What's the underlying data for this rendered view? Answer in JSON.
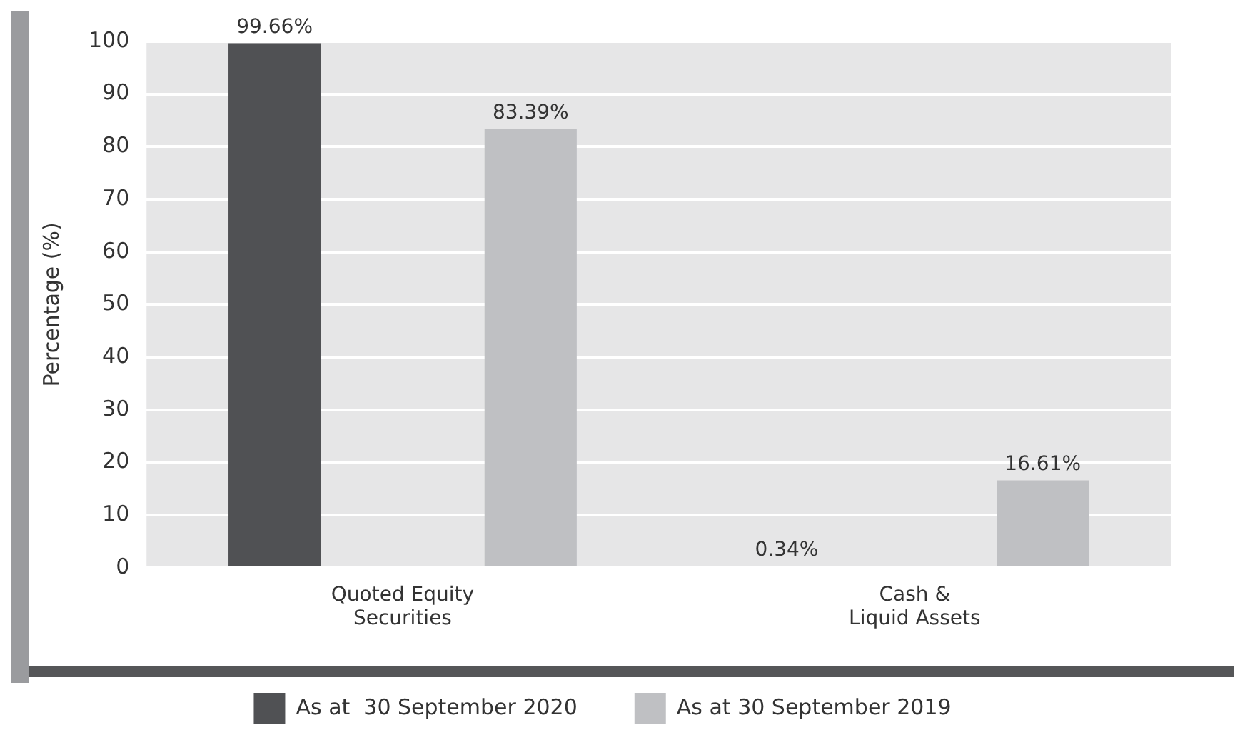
{
  "chart_data": {
    "type": "bar",
    "ylabel": "Percentage (%)",
    "categories": [
      "Quoted Equity\nSecurities",
      "Cash &\nLiquid Assets"
    ],
    "series": [
      {
        "name": "As at  30 September 2020",
        "color": "#505154",
        "values": [
          99.66,
          0.34
        ],
        "value_labels": [
          "99.66%",
          "0.34%"
        ]
      },
      {
        "name": "As at 30 September 2019",
        "color": "#bfc0c3",
        "values": [
          83.39,
          16.61
        ],
        "value_labels": [
          "83.39%",
          "16.61%"
        ]
      }
    ],
    "ylim": [
      0,
      100
    ],
    "yticks": [
      0,
      10,
      20,
      30,
      40,
      50,
      60,
      70,
      80,
      90,
      100
    ],
    "grid": "y",
    "legend": "bottom"
  }
}
